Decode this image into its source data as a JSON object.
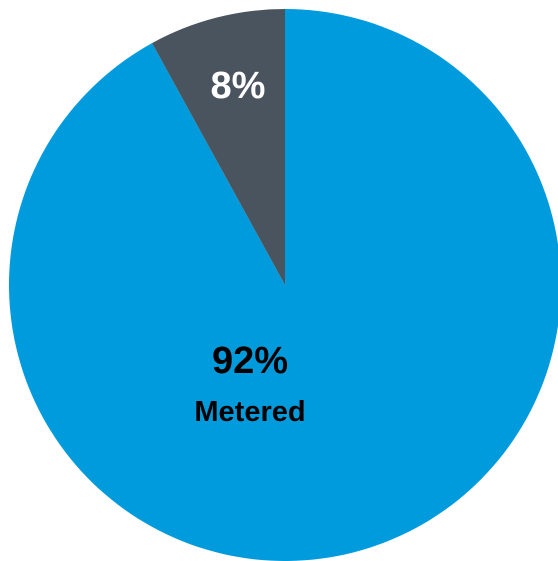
{
  "chart_data": {
    "type": "pie",
    "slices": [
      {
        "value": 92,
        "label": "92%",
        "sublabel": "Metered",
        "color": "#009bdc"
      },
      {
        "value": 8,
        "label": "8%",
        "sublabel": "",
        "color": "#4a545e"
      }
    ],
    "start_angle_deg": 0,
    "direction": "clockwise",
    "label_colors": {
      "0": "#000000",
      "1": "#ffffff"
    },
    "legend": "none"
  }
}
